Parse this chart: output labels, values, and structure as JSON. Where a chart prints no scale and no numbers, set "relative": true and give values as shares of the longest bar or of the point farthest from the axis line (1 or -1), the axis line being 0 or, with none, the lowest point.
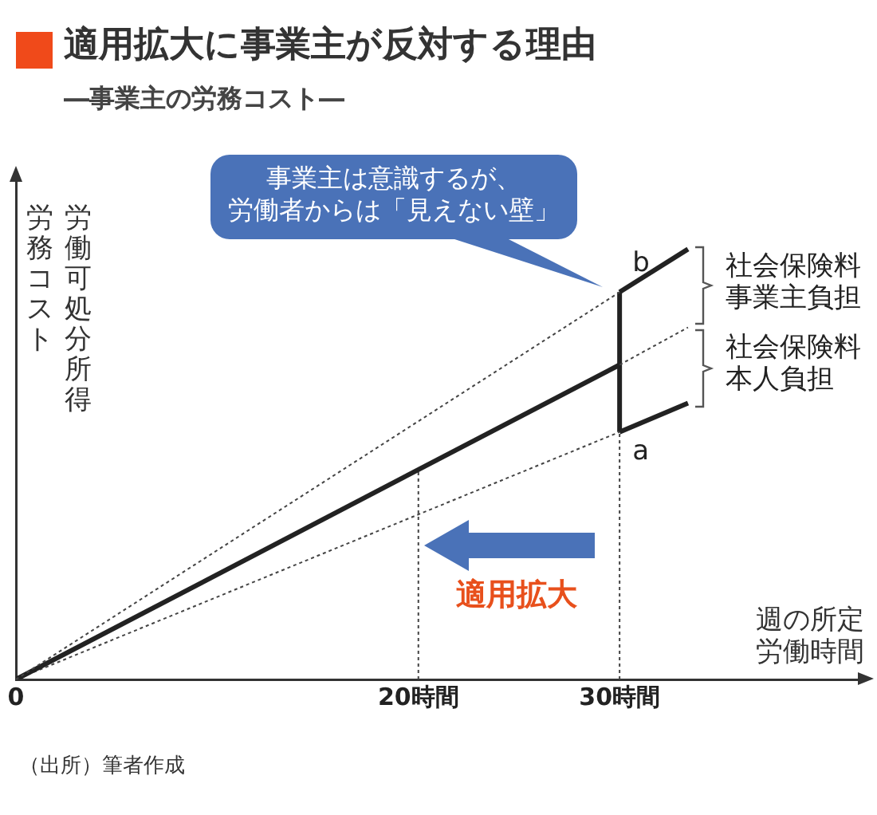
{
  "chart_data": {
    "type": "line",
    "title": "適用拡大に事業主が反対する理由",
    "subtitle": "―事業主の労務コスト―",
    "xlabel": "週の所定労働時間",
    "ylabel": "労働可処分所得労務コスト",
    "relative": true,
    "xlim": [
      0,
      42
    ],
    "xticks": [
      0,
      {
        "value": 20,
        "label": "20時間"
      },
      {
        "value": 30,
        "label": "30時間"
      }
    ],
    "tick_labels": "x",
    "grid": false,
    "legend": false,
    "marker": "none",
    "series": [
      {
        "color": "#444444",
        "line_style": "dotted",
        "x": [
          0,
          30
        ],
        "values": [
          0,
          0.9
        ]
      },
      {
        "color": "#222222",
        "line_style": "solid",
        "x": [
          30,
          33.4
        ],
        "values": [
          0.9,
          1
        ]
      },
      {
        "color": "#222222",
        "line_style": "solid",
        "x": [
          0,
          30
        ],
        "values": [
          0,
          0.731
        ]
      },
      {
        "color": "#444444",
        "line_style": "dotted",
        "x": [
          30,
          33.4
        ],
        "values": [
          0.731,
          0.818
        ]
      },
      {
        "color": "#444444",
        "line_style": "dotted",
        "x": [
          0,
          30
        ],
        "values": [
          0,
          0.575
        ]
      },
      {
        "color": "#222222",
        "line_style": "solid",
        "x": [
          30,
          33.4
        ],
        "values": [
          0.575,
          0.642
        ]
      },
      {
        "color": "#222222",
        "line_style": "solid",
        "x": [
          30,
          30
        ],
        "values": [
          0.575,
          0.9
        ]
      },
      {
        "color": "#444444",
        "line_style": "dotted",
        "x": [
          30,
          30
        ],
        "values": [
          0,
          0.575
        ]
      },
      {
        "color": "#444444",
        "line_style": "dotted",
        "x": [
          20,
          20
        ],
        "values": [
          0,
          0.487
        ]
      }
    ],
    "annotations": [
      "事業主は意識するが、",
      "労働者からは「見えない壁」",
      {
        "text": "b",
        "x": 30,
        "y": 0.9
      },
      {
        "text": "a",
        "x": 30,
        "y": 0.575
      },
      "社会保険料事業主負担",
      "社会保険料本人負担",
      "適用拡大",
      "（出所）筆者作成"
    ]
  }
}
